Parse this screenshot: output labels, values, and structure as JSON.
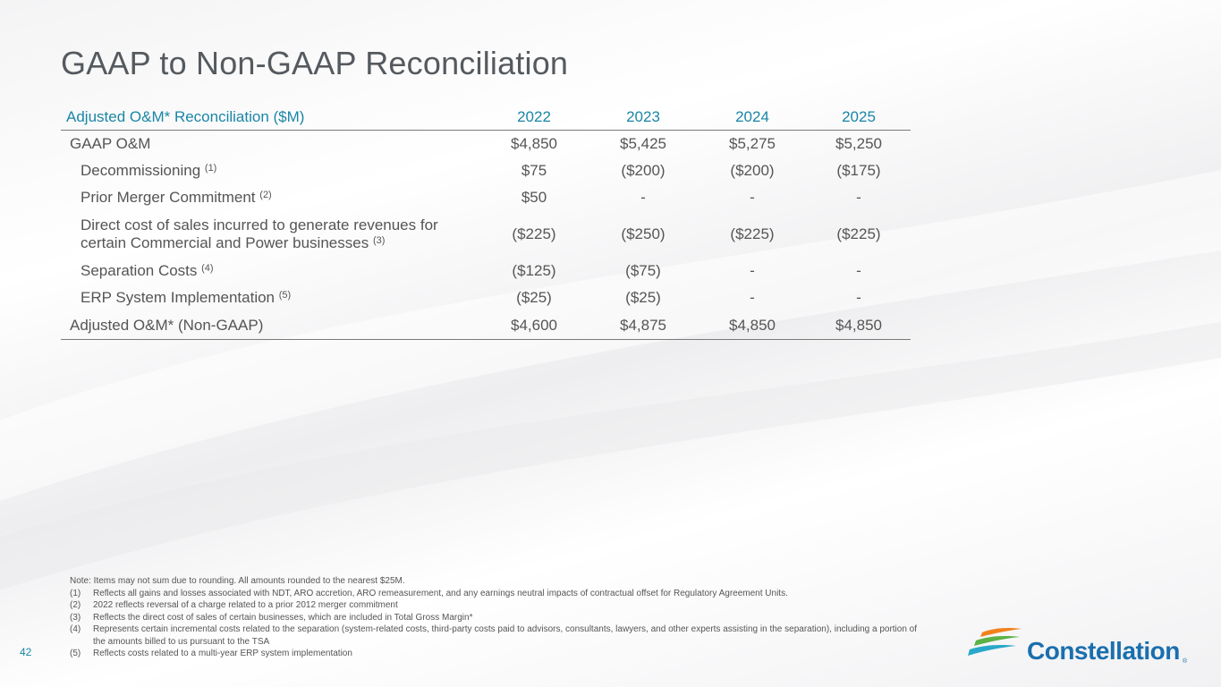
{
  "slide": {
    "title": "GAAP to Non-GAAP Reconciliation",
    "page_number": "42"
  },
  "table": {
    "header": {
      "label": "Adjusted O&M* Reconciliation ($M)",
      "years": [
        "2022",
        "2023",
        "2024",
        "2025"
      ]
    },
    "rows": [
      {
        "label": "GAAP O&M",
        "note": "",
        "values": [
          "$4,850",
          "$5,425",
          "$5,275",
          "$5,250"
        ]
      },
      {
        "label": "Decommissioning",
        "note": "(1)",
        "values": [
          "$75",
          "($200)",
          "($200)",
          "($175)"
        ]
      },
      {
        "label": "Prior Merger Commitment",
        "note": "(2)",
        "values": [
          "$50",
          "-",
          "-",
          "-"
        ]
      },
      {
        "label_line1": "Direct cost of sales incurred to generate revenues for",
        "label_line2": "certain Commercial and Power businesses",
        "note": "(3)",
        "values": [
          "($225)",
          "($250)",
          "($225)",
          "($225)"
        ]
      },
      {
        "label": "Separation Costs",
        "note": "(4)",
        "values": [
          "($125)",
          "($75)",
          "-",
          "-"
        ]
      },
      {
        "label": "ERP System Implementation",
        "note": "(5)",
        "values": [
          "($25)",
          "($25)",
          "-",
          "-"
        ]
      },
      {
        "label": "Adjusted O&M* (Non-GAAP)",
        "note": "",
        "values": [
          "$4,600",
          "$4,875",
          "$4,850",
          "$4,850"
        ]
      }
    ]
  },
  "notes": {
    "intro": "Note: Items may not sum due to rounding. All amounts rounded to the nearest $25M.",
    "footnotes": [
      {
        "num": "(1)",
        "text": "Reflects all gains and losses associated with NDT, ARO accretion, ARO remeasurement, and any earnings neutral impacts of contractual offset for Regulatory Agreement Units."
      },
      {
        "num": "(2)",
        "text": "2022 reflects reversal of a charge related to a prior 2012 merger commitment"
      },
      {
        "num": "(3)",
        "text": "Reflects the direct cost of sales of certain businesses, which are included in Total Gross Margin*"
      },
      {
        "num": "(4)",
        "text": "Represents certain incremental costs related to the separation (system-related costs, third-party costs paid to advisors, consultants, lawyers, and other experts assisting in the separation), including a portion of the amounts billed to us pursuant to the TSA"
      },
      {
        "num": "(5)",
        "text": "Reflects costs related to a multi-year ERP system implementation"
      }
    ]
  },
  "logo": {
    "text": "Constellation",
    "reg": "®",
    "mark_icon": "constellation-swoosh-icon",
    "colors": {
      "orange": "#f0821e",
      "green": "#5cb246",
      "blue": "#1a6fae",
      "teal": "#29a8c9"
    }
  },
  "colors": {
    "accent": "#1a86a6",
    "title": "#555a5f",
    "text": "#555555"
  }
}
